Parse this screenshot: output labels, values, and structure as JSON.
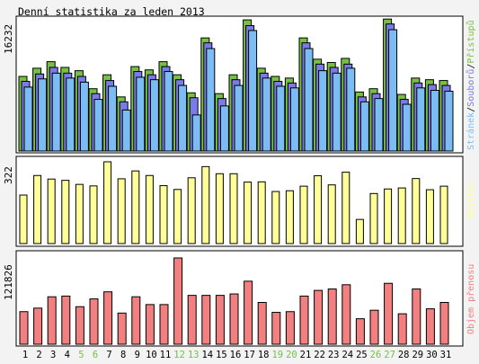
{
  "title": "Denní statistika za leden 2013",
  "days": [
    "1",
    "2",
    "3",
    "4",
    "5",
    "6",
    "7",
    "8",
    "9",
    "10",
    "11",
    "12",
    "13",
    "14",
    "15",
    "16",
    "17",
    "18",
    "19",
    "20",
    "21",
    "22",
    "23",
    "24",
    "25",
    "26",
    "27",
    "28",
    "29",
    "30",
    "31"
  ],
  "weekend_days": [
    "5",
    "6",
    "12",
    "13",
    "19",
    "20",
    "26",
    "27"
  ],
  "colors": {
    "background": "#f3f3f3",
    "panel": "#ffffff",
    "pristupu": "#77c043",
    "soubory": "#7a7ae8",
    "stranky": "#7bbcf4",
    "navstevy": "#ffff99",
    "prenosy": "#f28080",
    "weekend_label": "#77c043",
    "axis_text": "#000000"
  },
  "chart_data": [
    {
      "type": "bar",
      "panel": "top",
      "ylabel_value": "16232",
      "ylim": [
        0,
        16232
      ],
      "legend": [
        {
          "text": "Stránek",
          "color": "#7bbcf4"
        },
        {
          "text": "Souborů",
          "color": "#7a7ae8"
        },
        {
          "text": "Přístupů",
          "color": "#77c043"
        }
      ],
      "series": [
        {
          "name": "Přístupů",
          "values": [
            9100,
            10100,
            10900,
            10200,
            9800,
            7600,
            9300,
            6600,
            10300,
            9900,
            10900,
            9300,
            7100,
            13800,
            7000,
            9300,
            16000,
            10100,
            9100,
            8900,
            13800,
            11200,
            10800,
            11300,
            7200,
            7600,
            16100,
            6900,
            8900,
            8700,
            8600
          ]
        },
        {
          "name": "Souborů",
          "values": [
            8500,
            9400,
            10200,
            9500,
            9100,
            7000,
            8600,
            6000,
            9700,
            9300,
            10300,
            8700,
            6500,
            13200,
            6400,
            8700,
            15300,
            9500,
            8500,
            8300,
            13200,
            10600,
            10200,
            10600,
            6600,
            7000,
            15500,
            6300,
            8300,
            8100,
            8000
          ]
        },
        {
          "name": "Stránek",
          "values": [
            7800,
            8800,
            9500,
            8900,
            8400,
            6300,
            7900,
            5000,
            9000,
            8700,
            9700,
            8000,
            4400,
            12500,
            5500,
            8000,
            14700,
            8900,
            7900,
            7700,
            12500,
            9800,
            9500,
            10100,
            6000,
            6400,
            14800,
            5700,
            7700,
            7400,
            7300
          ]
        }
      ]
    },
    {
      "type": "bar",
      "panel": "middle",
      "ylabel_value": "322",
      "ylim": [
        0,
        322
      ],
      "legend": [
        {
          "text": "Návštěv",
          "color": "#ffff99"
        }
      ],
      "series": [
        {
          "name": "Návštěv",
          "values": [
            191,
            268,
            254,
            249,
            233,
            227,
            322,
            255,
            286,
            268,
            228,
            213,
            259,
            303,
            275,
            275,
            242,
            243,
            205,
            208,
            226,
            267,
            231,
            281,
            95,
            197,
            215,
            219,
            256,
            212,
            226
          ]
        }
      ]
    },
    {
      "type": "bar",
      "panel": "bottom",
      "ylabel_value": "121826",
      "ylim": [
        0,
        121826
      ],
      "legend": [
        {
          "text": "Objem přenosu",
          "color": "#f28080"
        }
      ],
      "series": [
        {
          "name": "Objem přenosu",
          "values": [
            46000,
            51000,
            67000,
            68000,
            53000,
            64000,
            74000,
            44000,
            67000,
            56000,
            56000,
            121826,
            69000,
            69000,
            69000,
            71000,
            89000,
            59000,
            45000,
            46000,
            68000,
            76000,
            78000,
            84000,
            36000,
            48000,
            86000,
            43000,
            78000,
            50000,
            59000
          ]
        }
      ]
    }
  ]
}
